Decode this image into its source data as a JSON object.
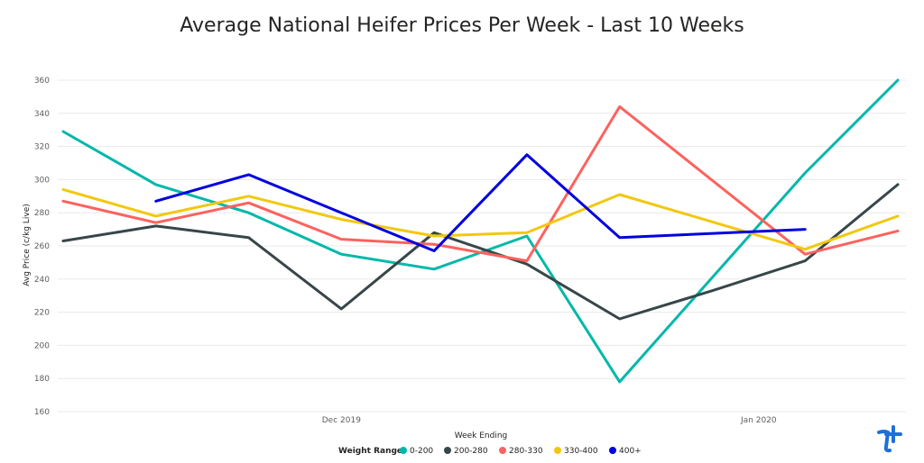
{
  "chart_data": {
    "type": "line",
    "title": "Average National Heifer Prices Per Week - Last 10 Weeks",
    "xlabel": "Week Ending",
    "ylabel": "Avg Price (c/kg Live)",
    "ylim": [
      160,
      360
    ],
    "yticks": [
      160,
      180,
      200,
      220,
      240,
      260,
      280,
      300,
      320,
      340,
      360
    ],
    "x_tick_labels": [
      {
        "label": "Dec 2019",
        "week_index": 3
      },
      {
        "label": "Jan 2020",
        "week_index": 7.5
      }
    ],
    "grid": "horizontal",
    "legend_title": "Weight Range",
    "legend_position": "bottom",
    "x": [
      0,
      1,
      2,
      3,
      4,
      5,
      6,
      7,
      8,
      9
    ],
    "series": [
      {
        "name": "0-200",
        "color": "#01b8aa",
        "values": [
          329,
          297,
          280,
          255,
          246,
          266,
          178,
          241,
          304,
          360
        ]
      },
      {
        "name": "200-280",
        "color": "#374649",
        "values": [
          263,
          272,
          265,
          222,
          268,
          249,
          216,
          233,
          251,
          297
        ]
      },
      {
        "name": "280-330",
        "color": "#fd625e",
        "values": [
          287,
          274,
          286,
          264,
          261,
          251,
          344,
          null,
          255,
          269
        ]
      },
      {
        "name": "330-400",
        "color": "#f2c80f",
        "values": [
          294,
          278,
          290,
          276,
          266,
          268,
          291,
          null,
          258,
          278
        ]
      },
      {
        "name": "400+",
        "color": "#0000e0",
        "values": [
          null,
          287,
          303,
          280,
          257,
          315,
          265,
          null,
          270,
          null
        ]
      }
    ]
  },
  "logo": {
    "name": "brand-logo",
    "color": "#1e6fd9"
  }
}
